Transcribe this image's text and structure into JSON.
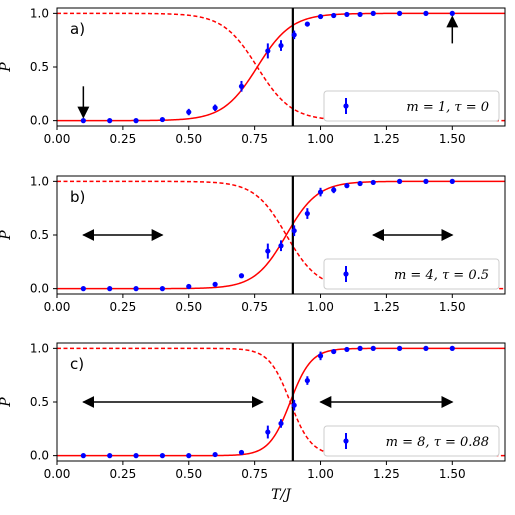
{
  "chart_data": [
    {
      "type": "line",
      "panel_label": "a)",
      "ylabel": "P",
      "xlabel": "",
      "xlim": [
        0,
        1.7
      ],
      "ylim": [
        -0.05,
        1.05
      ],
      "xticks": [
        "0.00",
        "0.25",
        "0.50",
        "0.75",
        "1.00",
        "1.25",
        "1.50"
      ],
      "yticks": [
        "0.0",
        "0.5",
        "1.0"
      ],
      "vline_x": 0.895,
      "legend": "m = 1, τ = 0",
      "legend_position": "lower-right",
      "fit_solid": {
        "center": 0.76,
        "width": 0.065
      },
      "fit_dashed": {
        "center": 0.76,
        "width": 0.065
      },
      "series": [
        {
          "x": [
            0.1,
            0.2,
            0.3,
            0.4,
            0.5,
            0.6,
            0.7,
            0.8,
            0.85,
            0.9,
            0.95,
            1.0,
            1.05,
            1.1,
            1.15,
            1.2,
            1.3,
            1.4,
            1.5
          ],
          "y": [
            0.0,
            0.0,
            0.0,
            0.01,
            0.08,
            0.12,
            0.32,
            0.65,
            0.7,
            0.8,
            0.9,
            0.97,
            0.98,
            0.99,
            0.99,
            1.0,
            1.0,
            1.0,
            1.0
          ],
          "err": [
            0.01,
            0.01,
            0.01,
            0.01,
            0.03,
            0.03,
            0.05,
            0.07,
            0.05,
            0.04,
            0.02,
            0.01,
            0.01,
            0.01,
            0.01,
            0.01,
            0.01,
            0.01,
            0.01
          ]
        }
      ],
      "annotations": [
        {
          "type": "arrow-down",
          "x": 0.1,
          "y_from": 0.32,
          "y_to": 0.03
        },
        {
          "type": "arrow-up",
          "x": 1.5,
          "y_from": 0.72,
          "y_to": 0.97
        }
      ]
    },
    {
      "type": "line",
      "panel_label": "b)",
      "ylabel": "P",
      "xlabel": "",
      "xlim": [
        0,
        1.7
      ],
      "ylim": [
        -0.05,
        1.05
      ],
      "xticks": [
        "0.00",
        "0.25",
        "0.50",
        "0.75",
        "1.00",
        "1.25",
        "1.50"
      ],
      "yticks": [
        "0.0",
        "0.5",
        "1.0"
      ],
      "vline_x": 0.895,
      "legend": "m = 4, τ = 0.5",
      "legend_position": "lower-right",
      "fit_solid": {
        "center": 0.87,
        "width": 0.06
      },
      "fit_dashed": {
        "center": 0.87,
        "width": 0.06
      },
      "series": [
        {
          "x": [
            0.1,
            0.2,
            0.3,
            0.4,
            0.5,
            0.6,
            0.7,
            0.8,
            0.85,
            0.9,
            0.95,
            1.0,
            1.05,
            1.1,
            1.15,
            1.2,
            1.3,
            1.4,
            1.5
          ],
          "y": [
            0.0,
            0.0,
            0.0,
            0.0,
            0.02,
            0.04,
            0.12,
            0.35,
            0.4,
            0.54,
            0.7,
            0.9,
            0.92,
            0.96,
            0.98,
            0.99,
            1.0,
            1.0,
            1.0
          ],
          "err": [
            0.01,
            0.01,
            0.01,
            0.01,
            0.01,
            0.01,
            0.02,
            0.07,
            0.05,
            0.05,
            0.05,
            0.04,
            0.03,
            0.02,
            0.01,
            0.01,
            0.01,
            0.01,
            0.01
          ]
        }
      ],
      "annotations": [
        {
          "type": "double-arrow",
          "x1": 0.1,
          "x2": 0.4,
          "y": 0.5
        },
        {
          "type": "double-arrow",
          "x1": 1.2,
          "x2": 1.5,
          "y": 0.5
        }
      ]
    },
    {
      "type": "line",
      "panel_label": "c)",
      "ylabel": "P",
      "xlabel": "T/J",
      "xlim": [
        0,
        1.7
      ],
      "ylim": [
        -0.05,
        1.05
      ],
      "xticks": [
        "0.00",
        "0.25",
        "0.50",
        "0.75",
        "1.00",
        "1.25",
        "1.50"
      ],
      "yticks": [
        "0.0",
        "0.5",
        "1.0"
      ],
      "vline_x": 0.895,
      "legend": "m = 8, τ = 0.88",
      "legend_position": "lower-right",
      "fit_solid": {
        "center": 0.885,
        "width": 0.04
      },
      "fit_dashed": {
        "center": 0.885,
        "width": 0.04
      },
      "series": [
        {
          "x": [
            0.1,
            0.2,
            0.3,
            0.4,
            0.5,
            0.6,
            0.7,
            0.8,
            0.85,
            0.9,
            0.95,
            1.0,
            1.05,
            1.1,
            1.15,
            1.2,
            1.3,
            1.4,
            1.5
          ],
          "y": [
            0.0,
            0.0,
            0.0,
            0.0,
            0.0,
            0.01,
            0.03,
            0.22,
            0.3,
            0.47,
            0.7,
            0.93,
            0.97,
            0.99,
            1.0,
            1.0,
            1.0,
            1.0,
            1.0
          ],
          "err": [
            0.01,
            0.01,
            0.01,
            0.01,
            0.01,
            0.01,
            0.02,
            0.06,
            0.04,
            0.05,
            0.04,
            0.04,
            0.02,
            0.01,
            0.01,
            0.01,
            0.01,
            0.01,
            0.01
          ]
        }
      ],
      "annotations": [
        {
          "type": "double-arrow",
          "x1": 0.1,
          "x2": 0.78,
          "y": 0.5
        },
        {
          "type": "double-arrow",
          "x1": 1.0,
          "x2": 1.5,
          "y": 0.5
        }
      ]
    }
  ],
  "colors": {
    "data": "#0000ff",
    "fit": "#ff0000",
    "vline": "#000000",
    "axis": "#000000"
  }
}
